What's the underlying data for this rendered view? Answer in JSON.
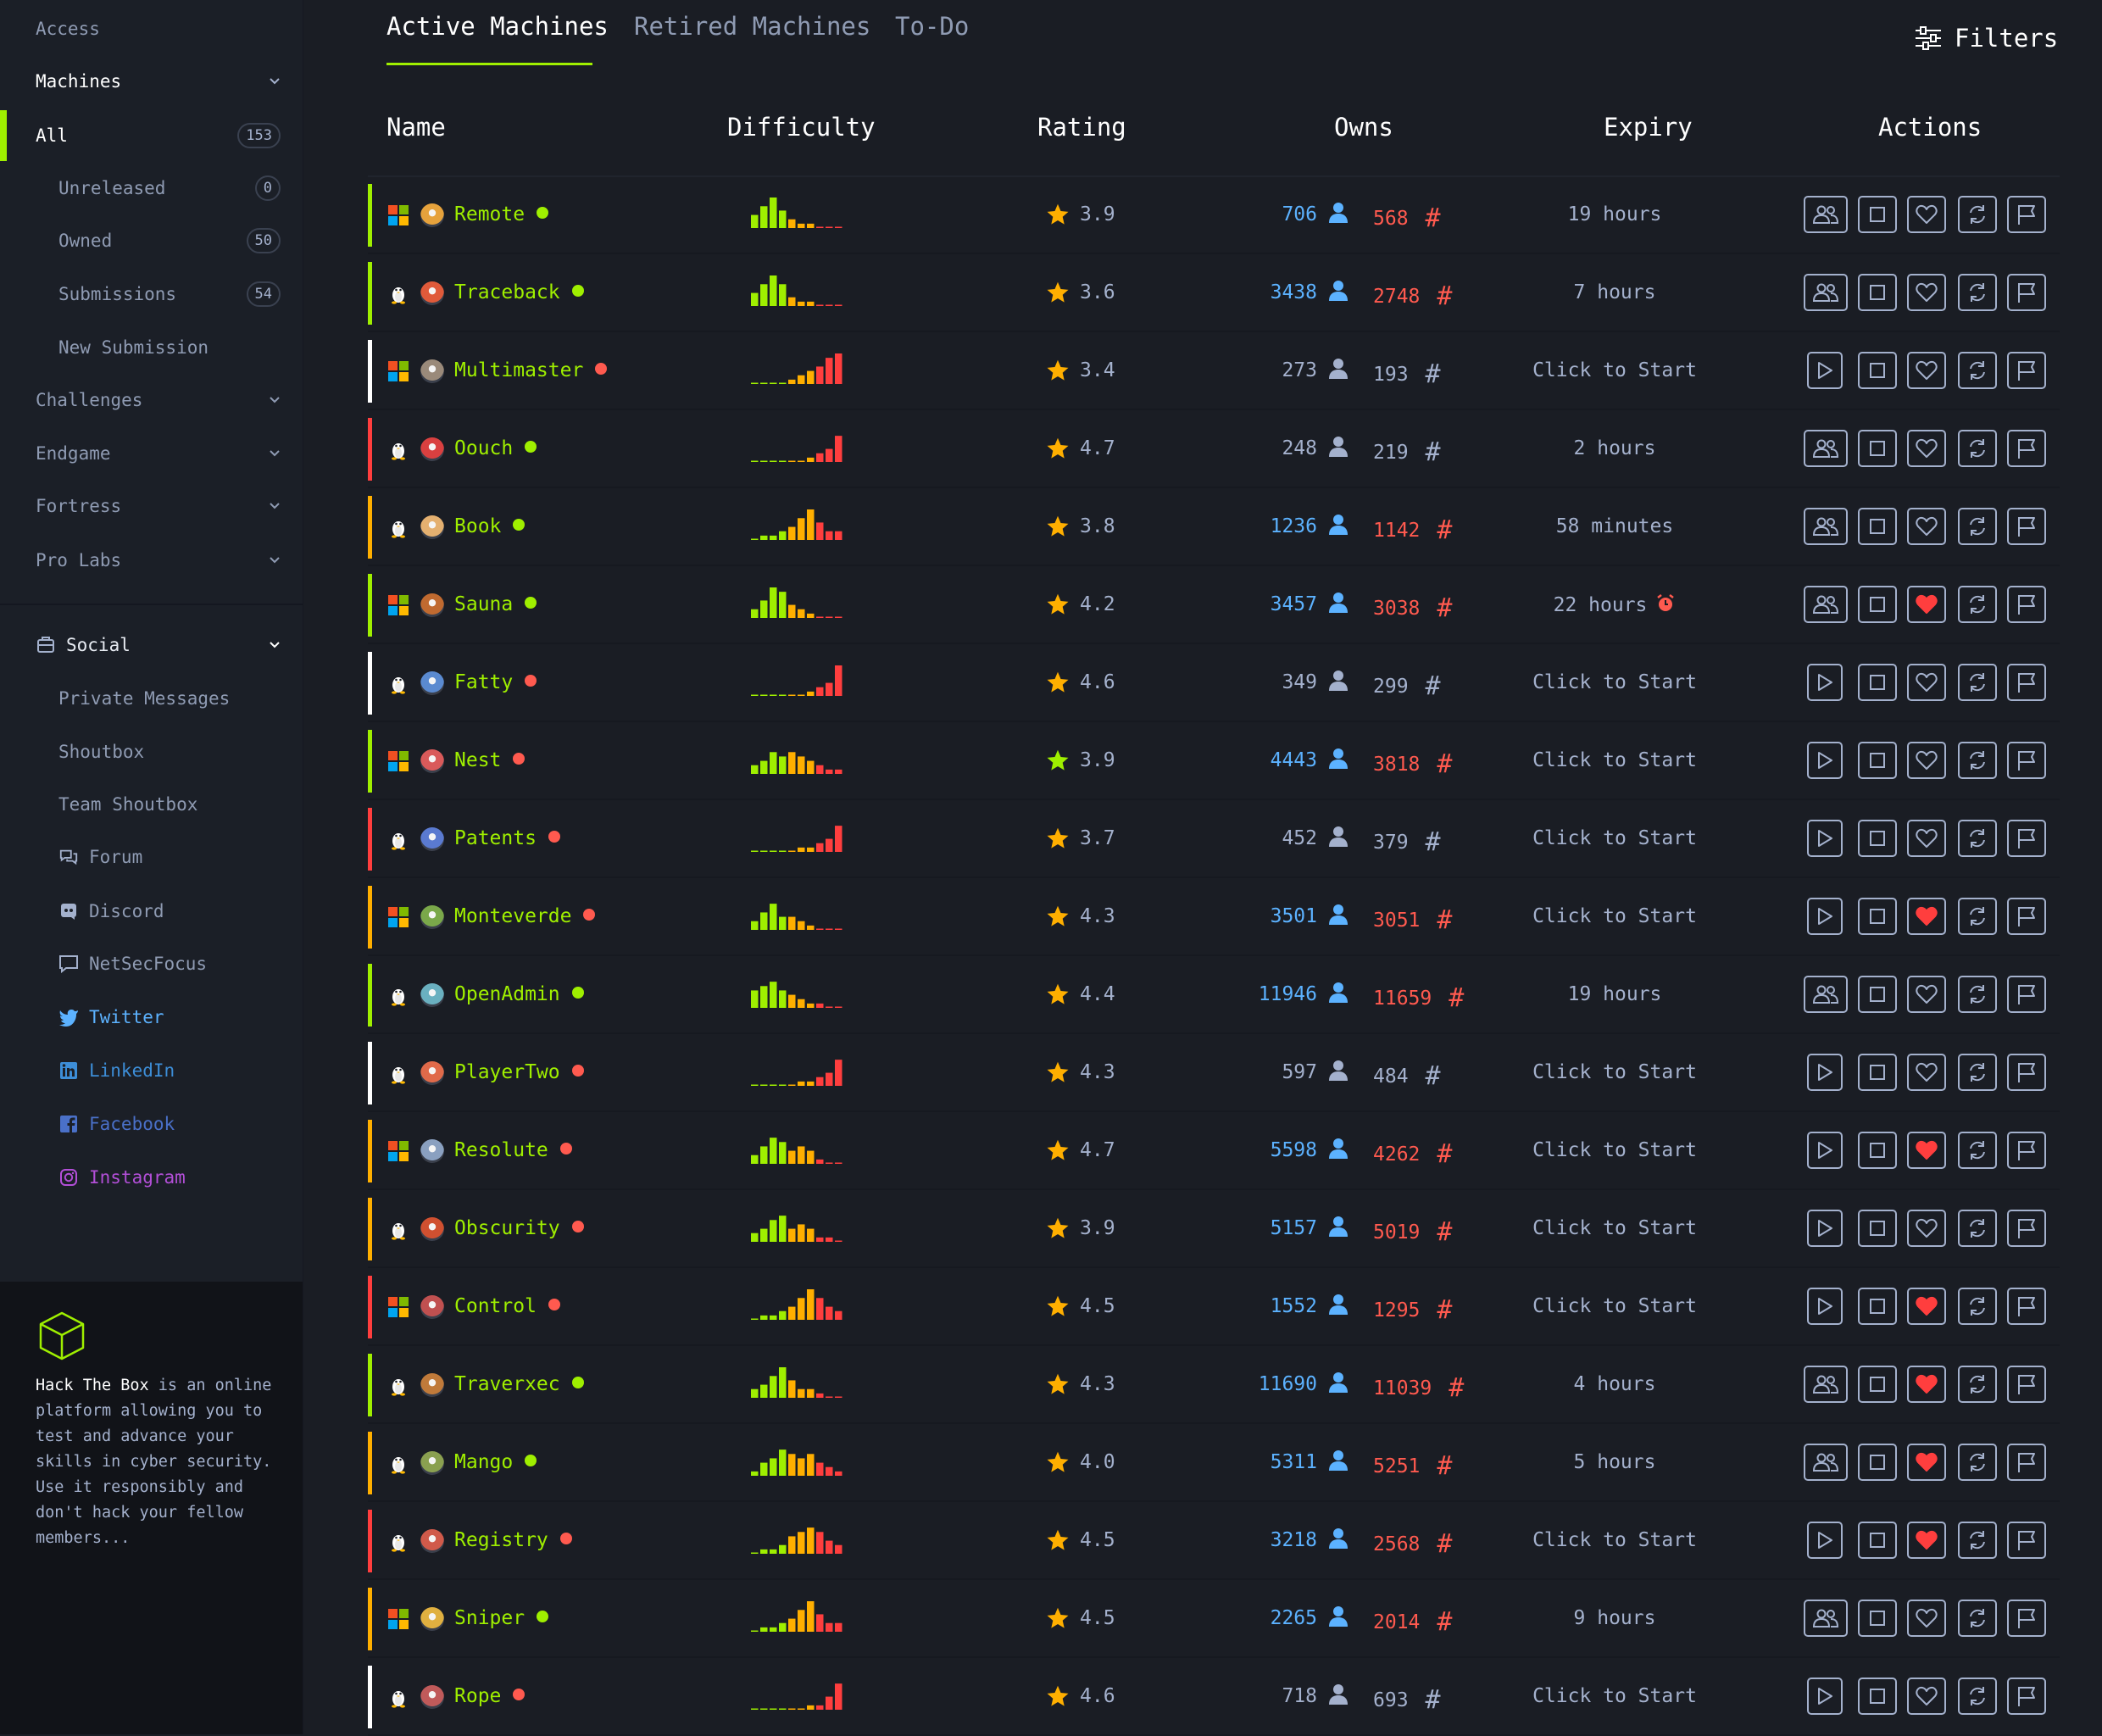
{
  "sidebar": {
    "access": "Access",
    "machines": "Machines",
    "all": {
      "label": "All",
      "count": "153"
    },
    "unreleased": {
      "label": "Unreleased",
      "count": "0"
    },
    "owned": {
      "label": "Owned",
      "count": "50"
    },
    "submissions": {
      "label": "Submissions",
      "count": "54"
    },
    "new_submission": "New Submission",
    "challenges": "Challenges",
    "endgame": "Endgame",
    "fortress": "Fortress",
    "pro_labs": "Pro Labs",
    "social": "Social",
    "private_messages": "Private Messages",
    "shoutbox": "Shoutbox",
    "team_shoutbox": "Team Shoutbox",
    "forum": "Forum",
    "discord": "Discord",
    "netsecfocus": "NetSecFocus",
    "twitter": "Twitter",
    "linkedin": "LinkedIn",
    "facebook": "Facebook",
    "instagram": "Instagram",
    "about_brand": "Hack The Box",
    "about_text": " is an online platform allowing you to test and advance your skills in cyber security. Use it responsibly and don't hack your fellow members..."
  },
  "tabs": {
    "active": "Active Machines",
    "retired": "Retired Machines",
    "todo": "To-Do"
  },
  "filters_label": "Filters",
  "columns": {
    "name": "Name",
    "difficulty": "Difficulty",
    "rating": "Rating",
    "owns": "Owns",
    "expiry": "Expiry",
    "actions": "Actions"
  },
  "colors": {
    "accent": "#9fef00",
    "easy": "#9fef00",
    "medium": "#ffaf00",
    "hard": "#ff3e3e",
    "insane": "#ffffff",
    "user_owns": "#5cb2ff",
    "root_owns": "#ff5a4f",
    "favorite": "#ff3e3e"
  },
  "machines": [
    {
      "name": "Remote",
      "os": "windows",
      "tier": "easy",
      "status": "green",
      "rating": "3.9",
      "users": "706",
      "roots": "568",
      "owned": true,
      "expiry": "19 hours",
      "running": true,
      "fav": false,
      "avatar": "#e6a23c",
      "difficulty": [
        3,
        5,
        7,
        4,
        2,
        1,
        1,
        0,
        0,
        0
      ]
    },
    {
      "name": "Traceback",
      "os": "linux",
      "tier": "easy",
      "status": "green",
      "rating": "3.6",
      "users": "3438",
      "roots": "2748",
      "owned": true,
      "expiry": "7 hours",
      "running": true,
      "fav": false,
      "avatar": "#e05a3a",
      "difficulty": [
        3,
        5,
        7,
        5,
        2,
        1,
        1,
        0,
        0,
        0
      ]
    },
    {
      "name": "Multimaster",
      "os": "windows",
      "tier": "insane",
      "status": "red",
      "rating": "3.4",
      "users": "273",
      "roots": "193",
      "owned": false,
      "expiry": "Click to Start",
      "running": false,
      "fav": false,
      "avatar": "#9a8a7a",
      "difficulty": [
        0,
        0,
        0,
        0,
        1,
        2,
        3,
        4,
        6,
        7
      ]
    },
    {
      "name": "Oouch",
      "os": "linux",
      "tier": "hard",
      "status": "green",
      "rating": "4.7",
      "users": "248",
      "roots": "219",
      "owned": false,
      "expiry": "2 hours",
      "running": true,
      "fav": false,
      "avatar": "#d94040",
      "difficulty": [
        0,
        0,
        0,
        0,
        0,
        0,
        1,
        2,
        3,
        6
      ]
    },
    {
      "name": "Book",
      "os": "linux",
      "tier": "medium",
      "status": "green",
      "rating": "3.8",
      "users": "1236",
      "roots": "1142",
      "owned": true,
      "expiry": "58 minutes",
      "running": true,
      "fav": false,
      "avatar": "#e4b070",
      "difficulty": [
        0,
        1,
        1,
        2,
        3,
        5,
        7,
        4,
        2,
        2
      ]
    },
    {
      "name": "Sauna",
      "os": "windows",
      "tier": "easy",
      "status": "green",
      "rating": "4.2",
      "users": "3457",
      "roots": "3038",
      "owned": true,
      "expiry": "22 hours",
      "alarm": true,
      "running": true,
      "fav": true,
      "avatar": "#c06a30",
      "difficulty": [
        2,
        4,
        7,
        6,
        3,
        2,
        1,
        0,
        0,
        0
      ]
    },
    {
      "name": "Fatty",
      "os": "linux",
      "tier": "insane",
      "status": "red",
      "rating": "4.6",
      "users": "349",
      "roots": "299",
      "owned": false,
      "expiry": "Click to Start",
      "running": false,
      "fav": false,
      "avatar": "#5a8ad0",
      "difficulty": [
        0,
        0,
        0,
        0,
        0,
        0,
        1,
        2,
        3,
        7
      ]
    },
    {
      "name": "Nest",
      "os": "windows",
      "tier": "easy",
      "status": "red",
      "rating": "3.9",
      "users": "4443",
      "roots": "3818",
      "owned": true,
      "expiry": "Click to Start",
      "running": false,
      "fav": false,
      "avatar": "#d95a5a",
      "difficulty": [
        2,
        3,
        5,
        4,
        5,
        4,
        3,
        2,
        1,
        1
      ]
    },
    {
      "name": "Patents",
      "os": "linux",
      "tier": "hard",
      "status": "red",
      "rating": "3.7",
      "users": "452",
      "roots": "379",
      "owned": false,
      "expiry": "Click to Start",
      "running": false,
      "fav": false,
      "avatar": "#5a7ad0",
      "difficulty": [
        0,
        0,
        0,
        0,
        0,
        1,
        1,
        2,
        3,
        6
      ]
    },
    {
      "name": "Monteverde",
      "os": "windows",
      "tier": "medium",
      "status": "red",
      "rating": "4.3",
      "users": "3501",
      "roots": "3051",
      "owned": true,
      "expiry": "Click to Start",
      "running": false,
      "fav": true,
      "avatar": "#7aa84a",
      "difficulty": [
        2,
        4,
        6,
        3,
        3,
        2,
        1,
        0,
        0,
        0
      ]
    },
    {
      "name": "OpenAdmin",
      "os": "linux",
      "tier": "easy",
      "status": "green",
      "rating": "4.4",
      "users": "11946",
      "roots": "11659",
      "owned": true,
      "expiry": "19 hours",
      "running": true,
      "fav": false,
      "avatar": "#6ab0c0",
      "difficulty": [
        4,
        5,
        6,
        4,
        3,
        2,
        1,
        1,
        0,
        0
      ]
    },
    {
      "name": "PlayerTwo",
      "os": "linux",
      "tier": "insane",
      "status": "red",
      "rating": "4.3",
      "users": "597",
      "roots": "484",
      "owned": false,
      "expiry": "Click to Start",
      "running": false,
      "fav": false,
      "avatar": "#e06a4a",
      "difficulty": [
        0,
        0,
        0,
        0,
        0,
        1,
        1,
        2,
        3,
        6
      ]
    },
    {
      "name": "Resolute",
      "os": "windows",
      "tier": "medium",
      "status": "red",
      "rating": "4.7",
      "users": "5598",
      "roots": "4262",
      "owned": true,
      "expiry": "Click to Start",
      "running": false,
      "fav": true,
      "avatar": "#8aa0c0",
      "difficulty": [
        2,
        4,
        6,
        5,
        3,
        4,
        3,
        1,
        0,
        0
      ]
    },
    {
      "name": "Obscurity",
      "os": "linux",
      "tier": "medium",
      "status": "red",
      "rating": "3.9",
      "users": "5157",
      "roots": "5019",
      "owned": true,
      "expiry": "Click to Start",
      "running": false,
      "fav": false,
      "avatar": "#d05030",
      "difficulty": [
        2,
        3,
        5,
        6,
        3,
        4,
        3,
        1,
        1,
        0
      ]
    },
    {
      "name": "Control",
      "os": "windows",
      "tier": "hard",
      "status": "red",
      "rating": "4.5",
      "users": "1552",
      "roots": "1295",
      "owned": true,
      "expiry": "Click to Start",
      "running": false,
      "fav": true,
      "avatar": "#c05050",
      "difficulty": [
        0,
        1,
        1,
        2,
        3,
        5,
        7,
        5,
        3,
        2
      ]
    },
    {
      "name": "Traverxec",
      "os": "linux",
      "tier": "easy",
      "status": "green",
      "rating": "4.3",
      "users": "11690",
      "roots": "11039",
      "owned": true,
      "expiry": "4 hours",
      "running": true,
      "fav": true,
      "avatar": "#c07a3a",
      "difficulty": [
        2,
        3,
        5,
        7,
        4,
        2,
        2,
        1,
        0,
        0
      ]
    },
    {
      "name": "Mango",
      "os": "linux",
      "tier": "medium",
      "status": "green",
      "rating": "4.0",
      "users": "5311",
      "roots": "5251",
      "owned": true,
      "expiry": "5 hours",
      "running": true,
      "fav": true,
      "avatar": "#8aa050",
      "difficulty": [
        1,
        3,
        4,
        6,
        5,
        4,
        5,
        3,
        2,
        1
      ]
    },
    {
      "name": "Registry",
      "os": "linux",
      "tier": "hard",
      "status": "red",
      "rating": "4.5",
      "users": "3218",
      "roots": "2568",
      "owned": true,
      "expiry": "Click to Start",
      "running": false,
      "fav": true,
      "avatar": "#d05a4a",
      "difficulty": [
        0,
        1,
        1,
        2,
        4,
        5,
        6,
        5,
        3,
        2
      ]
    },
    {
      "name": "Sniper",
      "os": "windows",
      "tier": "medium",
      "status": "green",
      "rating": "4.5",
      "users": "2265",
      "roots": "2014",
      "owned": true,
      "expiry": "9 hours",
      "running": true,
      "fav": false,
      "avatar": "#e0b040",
      "difficulty": [
        0,
        1,
        1,
        2,
        3,
        5,
        7,
        4,
        2,
        2
      ]
    },
    {
      "name": "Rope",
      "os": "linux",
      "tier": "insane",
      "status": "red",
      "rating": "4.6",
      "users": "718",
      "roots": "693",
      "owned": false,
      "expiry": "Click to Start",
      "running": false,
      "fav": false,
      "avatar": "#c05a5a",
      "difficulty": [
        0,
        0,
        0,
        0,
        0,
        0,
        1,
        1,
        3,
        6
      ]
    }
  ]
}
